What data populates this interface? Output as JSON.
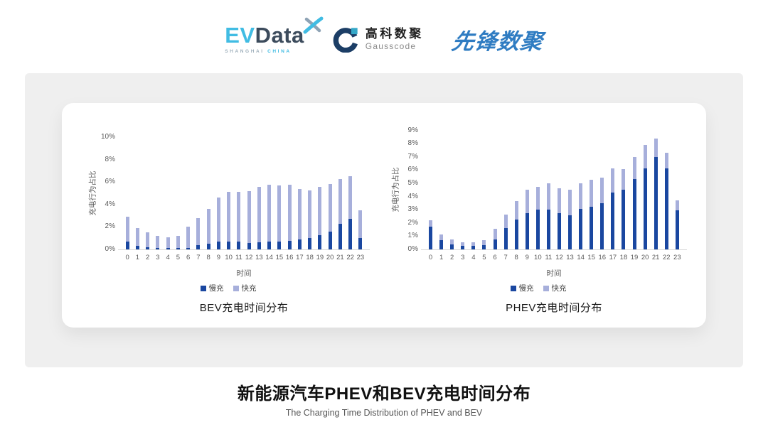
{
  "header": {
    "evdata": {
      "ev": "EV",
      "data": "Data",
      "region": "SHANGHAI",
      "country": "CHINA"
    },
    "gausscode": {
      "name_cn": "高科数聚",
      "name_en": "Gausscode"
    },
    "pioneer": {
      "name": "先锋数聚"
    }
  },
  "colors": {
    "slow_charge": "#1A47A0",
    "fast_charge": "#A7AFDB",
    "evdata_cyan": "#41BCE3",
    "evdata_navy": "#3C4B5C",
    "gauss_navy": "#1C3E66",
    "gauss_teal": "#35A8C8",
    "pioneer_blue": "#2F7CC2",
    "panel_bg": "#EFEFEF"
  },
  "chart_data": [
    {
      "type": "bar",
      "stacked": true,
      "title": "BEV充电时间分布",
      "xlabel": "时间",
      "ylabel": "充电行为占比",
      "unit": "%",
      "grid": false,
      "legend_position": "bottom",
      "categories": [
        "0",
        "1",
        "2",
        "3",
        "4",
        "5",
        "6",
        "7",
        "8",
        "9",
        "10",
        "11",
        "12",
        "13",
        "14",
        "15",
        "16",
        "17",
        "18",
        "19",
        "20",
        "21",
        "22",
        "23"
      ],
      "yticks": [
        0,
        2,
        4,
        6,
        8,
        10
      ],
      "ylim": [
        0,
        10
      ],
      "series": [
        {
          "name": "慢充",
          "color": "#1A47A0",
          "values": [
            0.7,
            0.35,
            0.2,
            0.1,
            0.1,
            0.1,
            0.15,
            0.4,
            0.5,
            0.7,
            0.7,
            0.7,
            0.6,
            0.65,
            0.7,
            0.7,
            0.75,
            0.9,
            1.0,
            1.25,
            1.6,
            2.3,
            2.7,
            1.0
          ]
        },
        {
          "name": "快充",
          "color": "#A7AFDB",
          "values": [
            2.2,
            1.55,
            1.3,
            1.1,
            1.0,
            1.1,
            1.85,
            2.4,
            3.1,
            3.9,
            4.45,
            4.45,
            4.6,
            4.95,
            5.05,
            5.0,
            5.0,
            4.5,
            4.25,
            4.3,
            4.2,
            4.0,
            3.8,
            2.5
          ]
        }
      ]
    },
    {
      "type": "bar",
      "stacked": true,
      "title": "PHEV充电时间分布",
      "xlabel": "时间",
      "ylabel": "充电行为占比",
      "unit": "%",
      "grid": false,
      "legend_position": "bottom",
      "categories": [
        "0",
        "1",
        "2",
        "3",
        "4",
        "5",
        "6",
        "7",
        "8",
        "9",
        "10",
        "11",
        "12",
        "13",
        "14",
        "15",
        "16",
        "17",
        "18",
        "19",
        "20",
        "21",
        "22",
        "23"
      ],
      "yticks": [
        0,
        1,
        2,
        3,
        4,
        5,
        6,
        7,
        8,
        9
      ],
      "ylim": [
        0,
        9
      ],
      "series": [
        {
          "name": "慢充",
          "color": "#1A47A0",
          "values": [
            1.7,
            0.7,
            0.4,
            0.25,
            0.25,
            0.3,
            0.75,
            1.6,
            2.25,
            2.75,
            3.0,
            3.0,
            2.75,
            2.6,
            3.05,
            3.2,
            3.5,
            4.3,
            4.5,
            5.3,
            6.15,
            7.0,
            6.1,
            2.95
          ]
        },
        {
          "name": "快充",
          "color": "#A7AFDB",
          "values": [
            0.5,
            0.45,
            0.35,
            0.3,
            0.3,
            0.4,
            0.8,
            1.05,
            1.4,
            1.75,
            1.75,
            2.0,
            1.85,
            1.9,
            1.95,
            2.05,
            1.95,
            1.8,
            1.6,
            1.7,
            1.75,
            1.4,
            1.2,
            0.75
          ]
        }
      ]
    }
  ],
  "footer": {
    "title": "新能源汽车PHEV和BEV充电时间分布",
    "subtitle": "The Charging Time Distribution of PHEV and BEV"
  }
}
